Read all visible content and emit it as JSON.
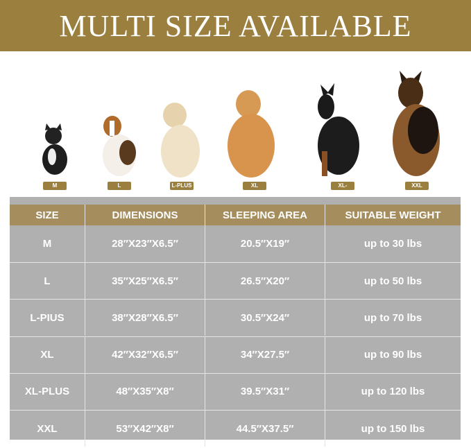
{
  "banner": {
    "title": "MULTI SIZE AVAILABLE"
  },
  "brand_color": "#9b7f3f",
  "size_tags": [
    "M",
    "L",
    "L-PLUS",
    "XL",
    "XL-PLUS",
    "XXL"
  ],
  "table": {
    "headers": [
      "SIZE",
      "DIMENSIONS",
      "SLEEPING AREA",
      "SUITABLE WEIGHT"
    ],
    "rows": [
      [
        "M",
        "28″X23″X6.5″",
        "20.5″X19″",
        "up to 30 lbs"
      ],
      [
        "L",
        "35″X25″X6.5″",
        "26.5″X20″",
        "up to 50 lbs"
      ],
      [
        "L-PIUS",
        "38″X28″X6.5″",
        "30.5″X24″",
        "up to 70 lbs"
      ],
      [
        "XL",
        "42″X32″X6.5″",
        "34″X27.5″",
        "up to 90 lbs"
      ],
      [
        "XL-PLUS",
        "48″X35″X8″",
        "39.5″X31″",
        "up to 120 lbs"
      ],
      [
        "XXL",
        "53″X42″X8″",
        "44.5″X37.5″",
        "up to 150 lbs"
      ]
    ]
  }
}
